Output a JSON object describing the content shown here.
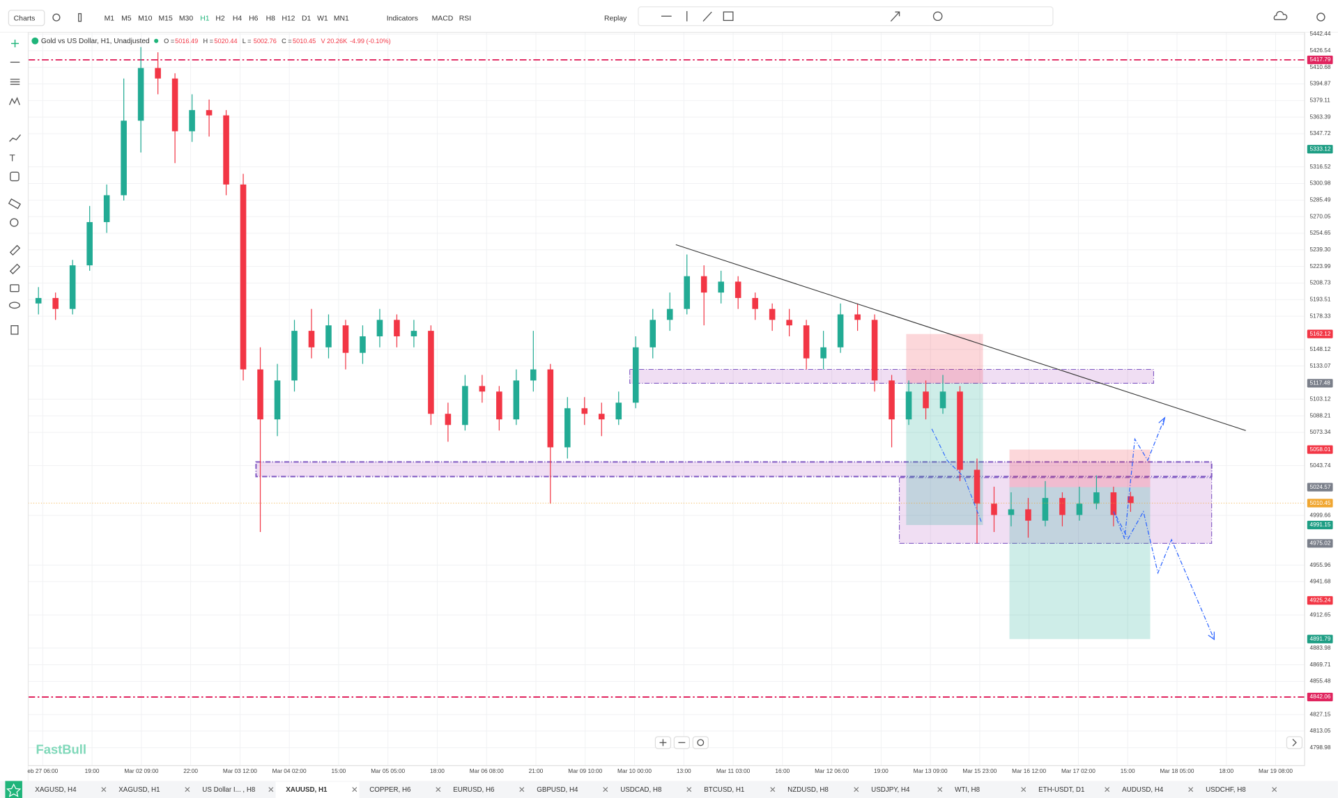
{
  "toolbar": {
    "menu": "Charts",
    "timeframes": [
      "M1",
      "M5",
      "M10",
      "M15",
      "M30",
      "H1",
      "H2",
      "H4",
      "H6",
      "H8",
      "H12",
      "D1",
      "W1",
      "MN1"
    ],
    "active_timeframe": "H1",
    "indicators": "Indicators",
    "studies": [
      "MACD",
      "RSI"
    ],
    "replay": "Replay"
  },
  "legend": {
    "symbol": "Gold vs US Dollar, H1, Unadjusted",
    "ohlc": [
      {
        "label": "O =",
        "value": "5016.49"
      },
      {
        "label": "H =",
        "value": "5020.44"
      },
      {
        "label": "L =",
        "value": "5002.76"
      },
      {
        "label": "C =",
        "value": "5010.45"
      }
    ],
    "volume": "V 20.26K",
    "change": "-4.99 (-0.10%)"
  },
  "watermark": "FastBull",
  "chart_data": {
    "type": "candlestick",
    "log_scale": true,
    "grid": true,
    "up_color": "#22ab94",
    "down_color": "#f23645",
    "ylim": [
      4798.98,
      5442.44
    ],
    "yticks": [
      5442.44,
      5426.54,
      5410.68,
      5394.87,
      5379.11,
      5363.39,
      5347.72,
      5316.52,
      5300.98,
      5285.49,
      5270.05,
      5254.65,
      {
        "value": 5239.3,
        "label": "5239.30"
      },
      5223.99,
      5208.73,
      5193.51,
      5178.33,
      5148.12,
      5133.07,
      5103.12,
      5088.21,
      5073.34,
      5043.74,
      4999.66,
      4955.96,
      4941.68,
      4912.65,
      4883.98,
      4869.71,
      4855.48,
      4827.15,
      4813.05,
      4798.98
    ],
    "categories": [
      "eb 27 06:00",
      "19:00",
      "Mar 02 09:00",
      "22:00",
      "Mar 03 12:00",
      "Mar 04 02:00",
      "15:00",
      "Mar 05 05:00",
      "18:00",
      "Mar 06 08:00",
      "21:00",
      "Mar 09 10:00",
      "Mar 10 00:00",
      "13:00",
      "Mar 11 03:00",
      "16:00",
      "Mar 12 06:00",
      "19:00",
      "Mar 13 09:00",
      "Mar 15 23:00",
      "Mar 16 12:00",
      "Mar 17 02:00",
      "15:00",
      "Mar 18 05:00",
      "18:00",
      "Mar 19 08:00"
    ],
    "candles": [
      [
        5190,
        5205,
        5180,
        5195
      ],
      [
        5195,
        5200,
        5175,
        5185
      ],
      [
        5185,
        5230,
        5180,
        5225
      ],
      [
        5225,
        5280,
        5220,
        5265
      ],
      [
        5265,
        5300,
        5255,
        5290
      ],
      [
        5290,
        5400,
        5285,
        5360
      ],
      [
        5360,
        5430,
        5330,
        5410
      ],
      [
        5410,
        5425,
        5385,
        5400
      ],
      [
        5400,
        5405,
        5320,
        5350
      ],
      [
        5350,
        5385,
        5340,
        5370
      ],
      [
        5370,
        5380,
        5345,
        5365
      ],
      [
        5365,
        5370,
        5290,
        5300
      ],
      [
        5300,
        5310,
        5120,
        5130
      ],
      [
        5130,
        5150,
        4985,
        5085
      ],
      [
        5085,
        5135,
        5070,
        5120
      ],
      [
        5120,
        5175,
        5110,
        5165
      ],
      [
        5165,
        5185,
        5140,
        5150
      ],
      [
        5150,
        5180,
        5140,
        5170
      ],
      [
        5170,
        5175,
        5130,
        5145
      ],
      [
        5145,
        5170,
        5135,
        5160
      ],
      [
        5160,
        5185,
        5150,
        5175
      ],
      [
        5175,
        5180,
        5150,
        5160
      ],
      [
        5160,
        5175,
        5150,
        5165
      ],
      [
        5165,
        5170,
        5080,
        5090
      ],
      [
        5090,
        5100,
        5065,
        5080
      ],
      [
        5080,
        5125,
        5075,
        5115
      ],
      [
        5115,
        5125,
        5100,
        5110
      ],
      [
        5110,
        5115,
        5075,
        5085
      ],
      [
        5085,
        5130,
        5080,
        5120
      ],
      [
        5120,
        5165,
        5110,
        5130
      ],
      [
        5130,
        5135,
        5010,
        5060
      ],
      [
        5060,
        5105,
        5050,
        5095
      ],
      [
        5095,
        5105,
        5080,
        5090
      ],
      [
        5090,
        5100,
        5070,
        5085
      ],
      [
        5085,
        5110,
        5080,
        5100
      ],
      [
        5100,
        5160,
        5095,
        5150
      ],
      [
        5150,
        5185,
        5140,
        5175
      ],
      [
        5175,
        5200,
        5165,
        5185
      ],
      [
        5185,
        5235,
        5180,
        5215
      ],
      [
        5215,
        5225,
        5170,
        5200
      ],
      [
        5200,
        5220,
        5190,
        5210
      ],
      [
        5210,
        5215,
        5185,
        5195
      ],
      [
        5195,
        5200,
        5175,
        5185
      ],
      [
        5185,
        5190,
        5165,
        5175
      ],
      [
        5175,
        5185,
        5160,
        5170
      ],
      [
        5170,
        5175,
        5130,
        5140
      ],
      [
        5140,
        5165,
        5130,
        5150
      ],
      [
        5150,
        5190,
        5145,
        5180
      ],
      [
        5180,
        5190,
        5165,
        5175
      ],
      [
        5175,
        5180,
        5110,
        5120
      ],
      [
        5120,
        5125,
        5060,
        5085
      ],
      [
        5085,
        5120,
        5080,
        5110
      ],
      [
        5110,
        5120,
        5085,
        5095
      ],
      [
        5095,
        5125,
        5090,
        5110
      ],
      [
        5110,
        5115,
        5030,
        5040
      ],
      [
        5040,
        5050,
        4975,
        5010
      ],
      [
        5010,
        5025,
        4985,
        5000
      ],
      [
        5000,
        5020,
        4990,
        5005
      ],
      [
        5005,
        5015,
        4980,
        4995
      ],
      [
        4995,
        5030,
        4990,
        5015
      ],
      [
        5015,
        5020,
        4990,
        5000
      ],
      [
        5000,
        5025,
        4995,
        5010
      ],
      [
        5010,
        5035,
        5005,
        5020
      ],
      [
        5020,
        5025,
        4990,
        5000
      ],
      [
        5016.49,
        5020.44,
        5002.76,
        5010.45
      ]
    ],
    "price_markers": [
      {
        "value": 5417.79,
        "color": "#e0245e",
        "style": "dash-dot"
      },
      {
        "value": 5333.12,
        "color": "#1e9e84"
      },
      {
        "value": 5162.12,
        "color": "#f23645"
      },
      {
        "value": 5117.48,
        "color": "#7a7f8a"
      },
      {
        "value": 5058.01,
        "color": "#f23645"
      },
      {
        "value": 5024.57,
        "color": "#7a7f8a"
      },
      {
        "value": 5010.45,
        "color": "#f0a630"
      },
      {
        "value": 4991.15,
        "color": "#1e9e84"
      },
      {
        "value": 4975.02,
        "color": "#7a7f8a"
      },
      {
        "value": 4925.24,
        "color": "#f23645"
      },
      {
        "value": 4891.79,
        "color": "#1e9e84"
      },
      {
        "value": 4842.06,
        "color": "#e0245e",
        "style": "dash-dot"
      }
    ],
    "zones": [
      {
        "top": 5130,
        "bottom": 5117.48
      },
      {
        "top": 5047,
        "bottom": 5034
      },
      {
        "top": 5033,
        "bottom": 4975.02
      }
    ],
    "positions": [
      {
        "stop": 5162.12,
        "entry": 5117.48,
        "target": 4991.15
      },
      {
        "stop": 5058.01,
        "entry": 5024.57,
        "target": 4891.79
      }
    ]
  },
  "tabs": [
    "XAGUSD, H4",
    "XAGUSD, H1",
    "US Dollar I... , H8",
    "XAUUSD, H1",
    "COPPER, H6",
    "EURUSD, H6",
    "GBPUSD, H4",
    "USDCAD, H8",
    "BTCUSD, H1",
    "NZDUSD, H8",
    "USDJPY, H4",
    "WTI, H8",
    "ETH-USDT, D1",
    "AUDUSD, H4",
    "USDCHF, H8"
  ],
  "active_tab": "XAUUSD, H1"
}
